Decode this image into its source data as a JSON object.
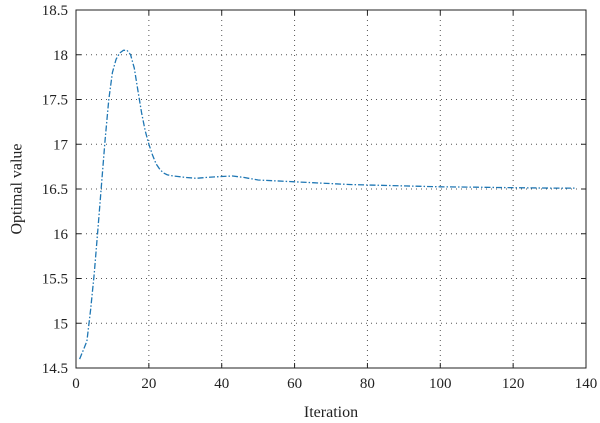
{
  "chart_data": {
    "type": "line",
    "xlabel": "Iteration",
    "ylabel": "Optimal value",
    "xlim": [
      0,
      140
    ],
    "ylim": [
      14.5,
      18.5
    ],
    "xticks": [
      0,
      20,
      40,
      60,
      80,
      100,
      120,
      140
    ],
    "yticks": [
      14.5,
      15,
      15.5,
      16,
      16.5,
      17,
      17.5,
      18,
      18.5
    ],
    "ytick_labels": [
      "14.5",
      "15",
      "15.5",
      "16",
      "16.5",
      "17",
      "17.5",
      "18",
      "18.5"
    ],
    "grid": true,
    "line_color": "#1f77b4",
    "line_style": "dash-dot",
    "series": [
      {
        "x": [
          1,
          2,
          3,
          4,
          5,
          6,
          7,
          8,
          9,
          10,
          11,
          12,
          13,
          14,
          15,
          16,
          17,
          18,
          19,
          20,
          21,
          22,
          23,
          24,
          25,
          26,
          28,
          30,
          33,
          36,
          40,
          43,
          46,
          50,
          55,
          60,
          65,
          70,
          75,
          80,
          90,
          100,
          110,
          120,
          130,
          137
        ],
        "y": [
          14.6,
          14.7,
          14.8,
          15.15,
          15.55,
          16.05,
          16.55,
          17.05,
          17.5,
          17.8,
          17.95,
          18.02,
          18.05,
          18.05,
          18.0,
          17.85,
          17.6,
          17.35,
          17.15,
          17.0,
          16.88,
          16.78,
          16.72,
          16.68,
          16.66,
          16.65,
          16.64,
          16.63,
          16.62,
          16.63,
          16.64,
          16.645,
          16.63,
          16.6,
          16.59,
          16.58,
          16.57,
          16.56,
          16.55,
          16.545,
          16.535,
          16.525,
          16.52,
          16.515,
          16.51,
          16.51
        ]
      }
    ]
  }
}
